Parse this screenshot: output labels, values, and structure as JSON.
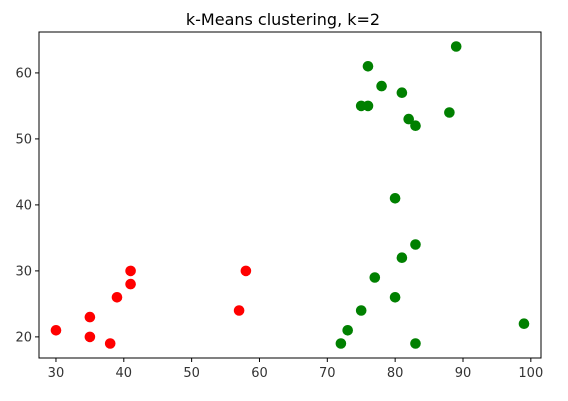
{
  "chart_data": {
    "type": "scatter",
    "title": "k-Means clustering, k=2",
    "xlabel": "",
    "ylabel": "",
    "xlim": [
      27.5,
      101.5
    ],
    "ylim": [
      16.8,
      66.2
    ],
    "xticks": [
      30,
      40,
      50,
      60,
      70,
      80,
      90,
      100
    ],
    "yticks": [
      20,
      30,
      40,
      50,
      60
    ],
    "grid": false,
    "series": [
      {
        "color": "#ff0000",
        "points": [
          [
            30,
            21
          ],
          [
            35,
            23
          ],
          [
            35,
            20
          ],
          [
            38,
            19
          ],
          [
            39,
            26
          ],
          [
            41,
            30
          ],
          [
            41,
            28
          ],
          [
            57,
            24
          ],
          [
            58,
            30
          ]
        ]
      },
      {
        "color": "#008000",
        "points": [
          [
            72,
            19
          ],
          [
            73,
            21
          ],
          [
            75,
            24
          ],
          [
            75,
            55
          ],
          [
            76,
            61
          ],
          [
            76,
            55
          ],
          [
            77,
            29
          ],
          [
            78,
            58
          ],
          [
            80,
            26
          ],
          [
            80,
            41
          ],
          [
            81,
            57
          ],
          [
            81,
            32
          ],
          [
            82,
            53
          ],
          [
            83,
            52
          ],
          [
            83,
            34
          ],
          [
            83,
            19
          ],
          [
            88,
            54
          ],
          [
            89,
            64
          ],
          [
            99,
            22
          ]
        ]
      }
    ]
  }
}
